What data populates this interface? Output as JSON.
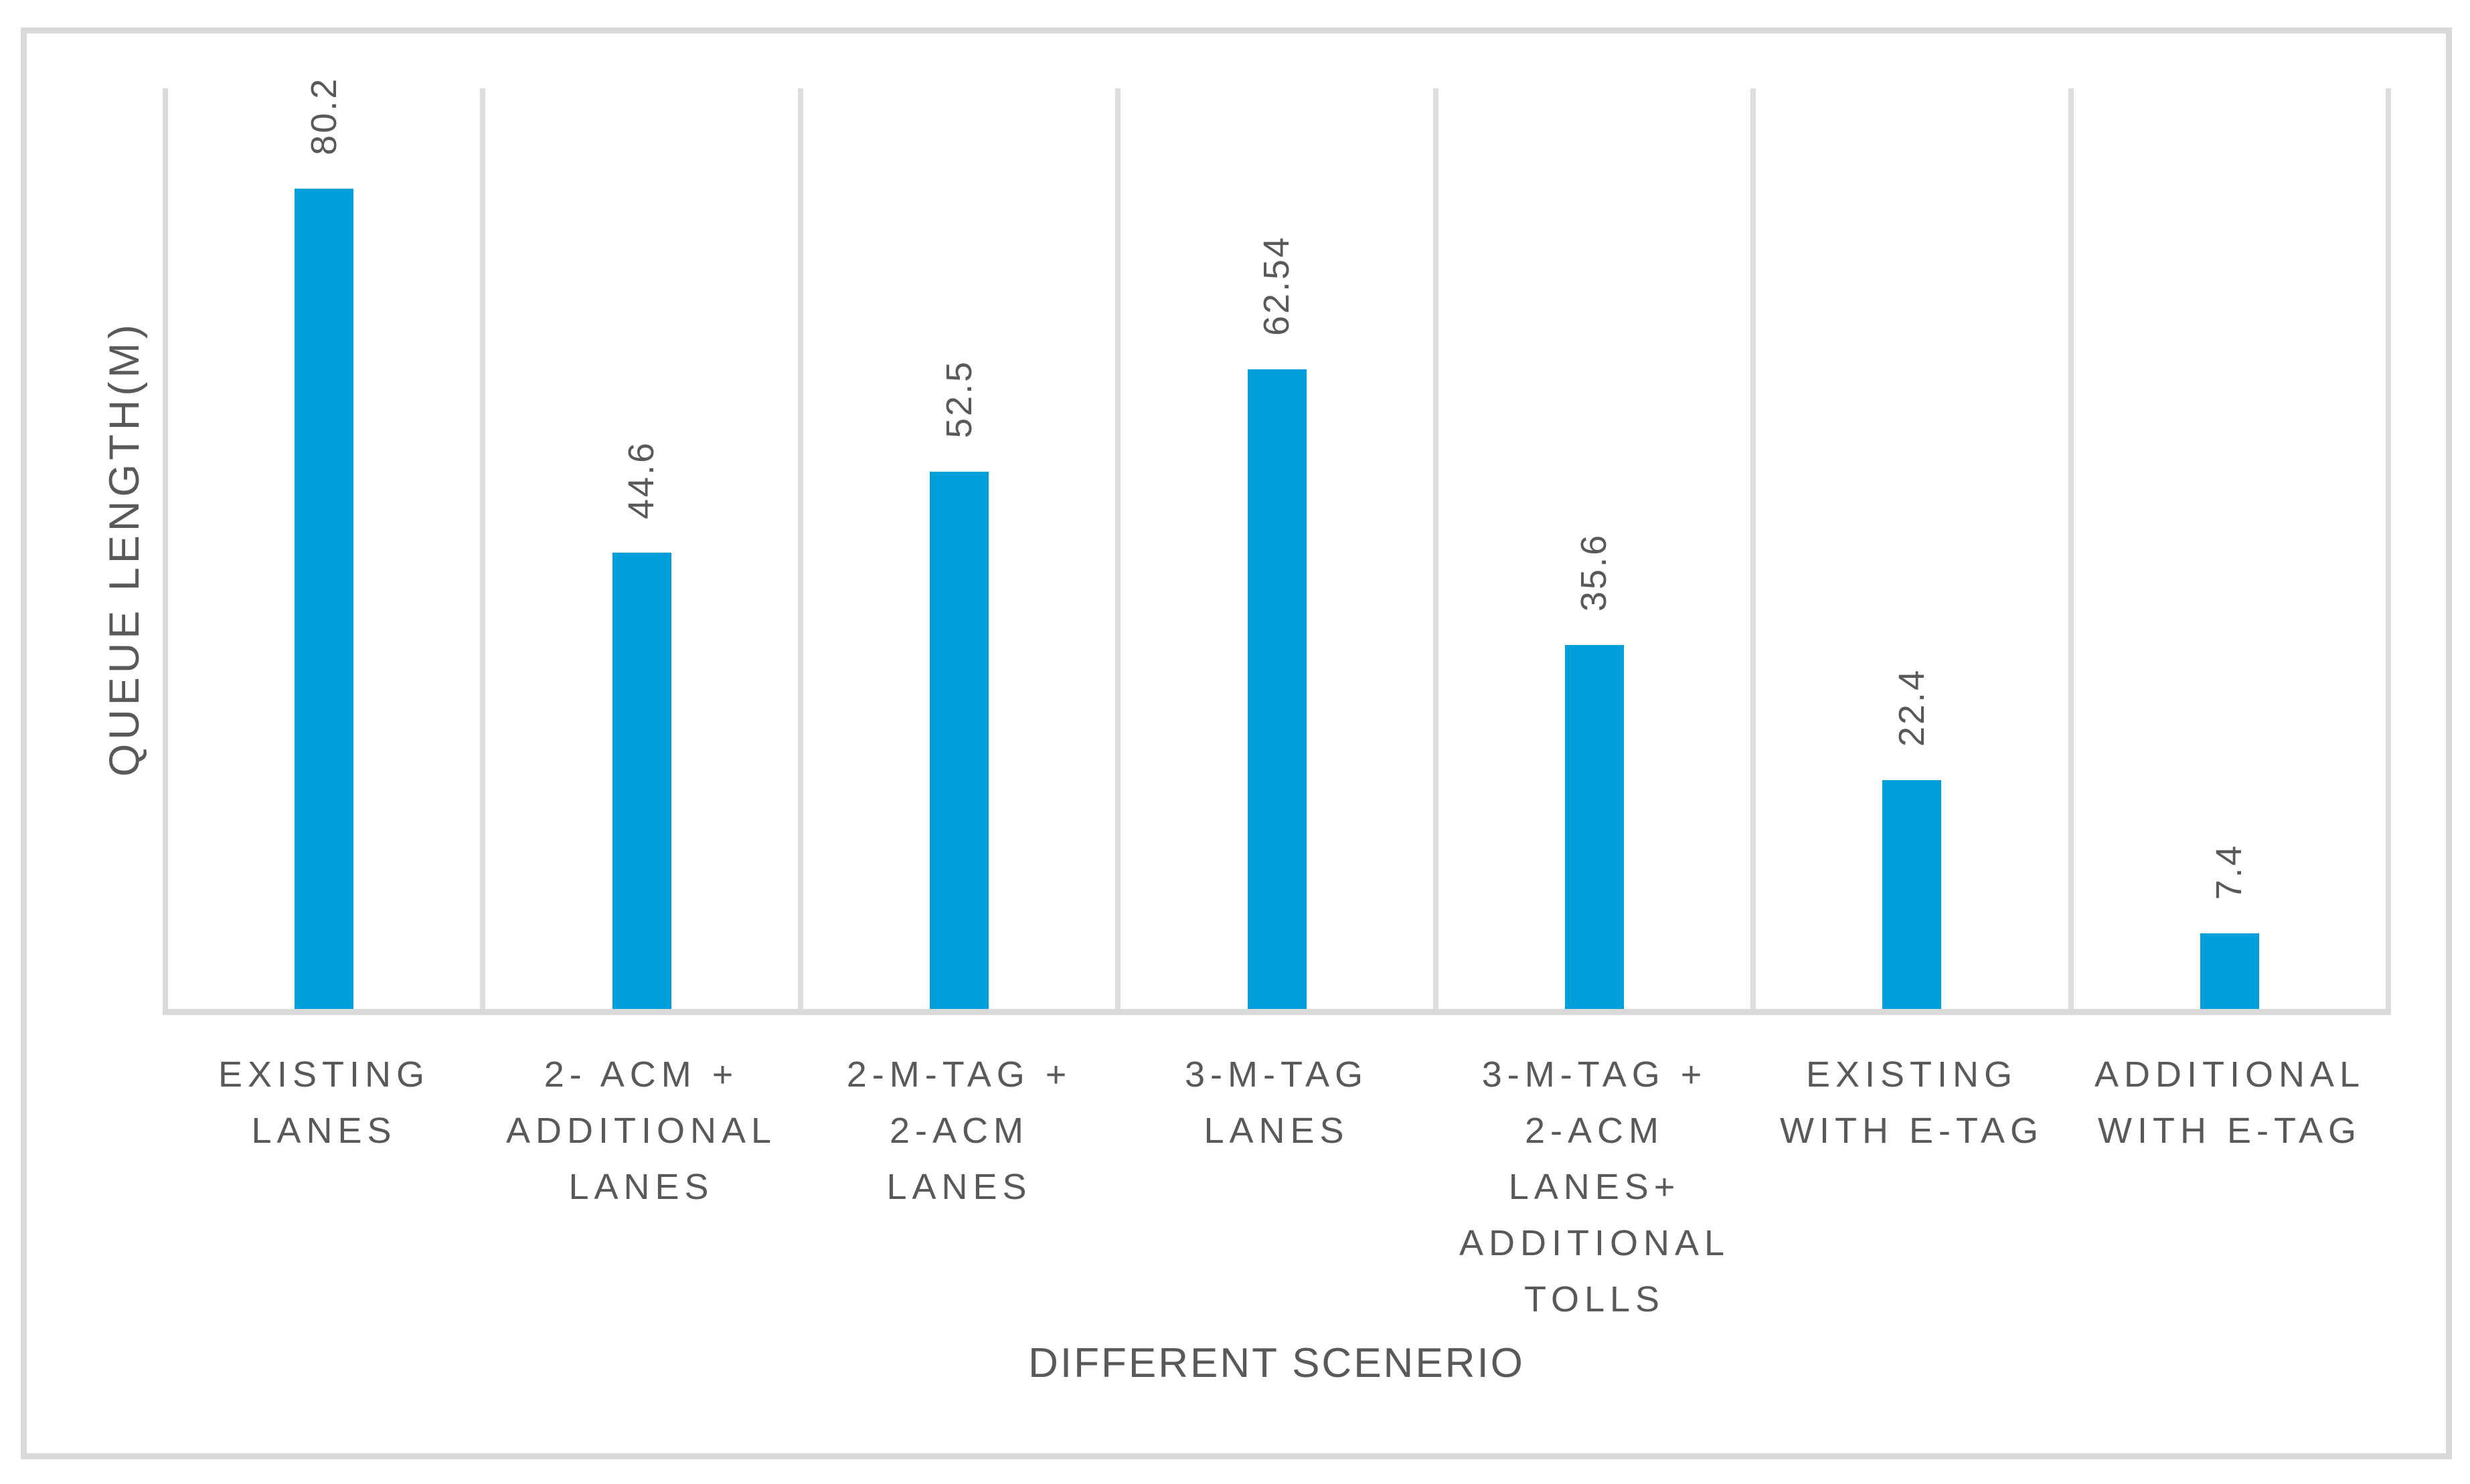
{
  "figure": {
    "background_color": "#FFFFFF",
    "frame_border_color": "#D9D9D9",
    "gridline_color": "#DDDDDD",
    "axis_line_color": "#D9D9D9",
    "text_color": "#595959",
    "bar_color": "#009EDB"
  },
  "chart_data": {
    "type": "bar",
    "title": "",
    "xlabel": "DIFFERENT SCENERIO",
    "ylabel": "QUEUE LENGTH(M)",
    "categories": [
      "EXISTING LANES",
      "2- ACM + ADDITIONAL LANES",
      "2-M-TAG + 2-ACM LANES",
      "3-M-TAG LANES",
      "3-M-TAG + 2-ACM LANES+ ADDITIONAL TOLLS",
      "EXISTING WITH E-TAG",
      "ADDITIONAL WITH E-TAG"
    ],
    "category_lines": [
      [
        "EXISTING",
        "LANES"
      ],
      [
        "2- ACM +",
        "ADDITIONAL",
        "LANES"
      ],
      [
        "2-M-TAG +",
        "2-ACM",
        "LANES"
      ],
      [
        "3-M-TAG",
        "LANES"
      ],
      [
        "3-M-TAG +",
        "2-ACM",
        "LANES+",
        "ADDITIONAL",
        "TOLLS"
      ],
      [
        "EXISTING",
        "WITH E-TAG"
      ],
      [
        "ADDITIONAL",
        "WITH E-TAG"
      ]
    ],
    "values": [
      80.2,
      44.6,
      52.5,
      62.54,
      35.6,
      22.4,
      7.4
    ],
    "data_labels": [
      "80.2",
      "44.6",
      "52.5",
      "62.54",
      "35.6",
      "22.4",
      "7.4"
    ],
    "data_label_rotation_deg": -90,
    "ylim": [
      0,
      90
    ],
    "yticks_visible": false,
    "grid": "vertical-category-separators",
    "legend": "none"
  }
}
